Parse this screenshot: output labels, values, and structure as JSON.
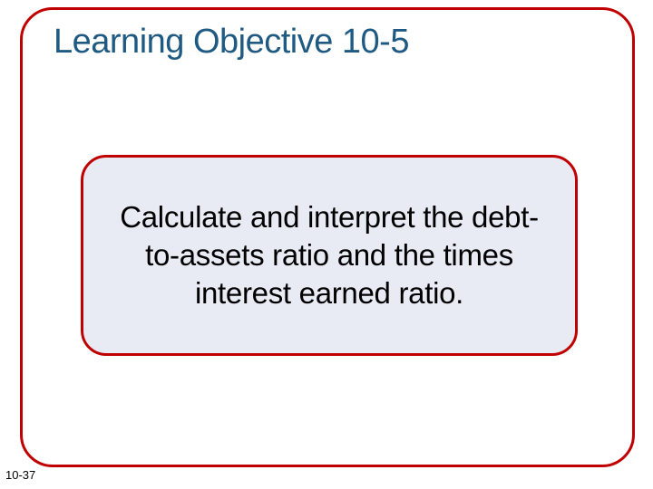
{
  "slide": {
    "title": "Learning Objective 10-5",
    "title_color": "#1f5a82",
    "title_fontsize": 38,
    "outer_border_color": "#c00000",
    "outer_border_radius": 36,
    "outer_background": "#ffffff",
    "inner": {
      "text": "Calculate and interpret the debt-to-assets ratio and the times interest earned ratio.",
      "text_color": "#000000",
      "text_fontsize": 33,
      "border_color": "#c00000",
      "background": "#e8eaf4",
      "border_radius": 28
    },
    "page_number": "10-37",
    "background": "#ffffff"
  }
}
